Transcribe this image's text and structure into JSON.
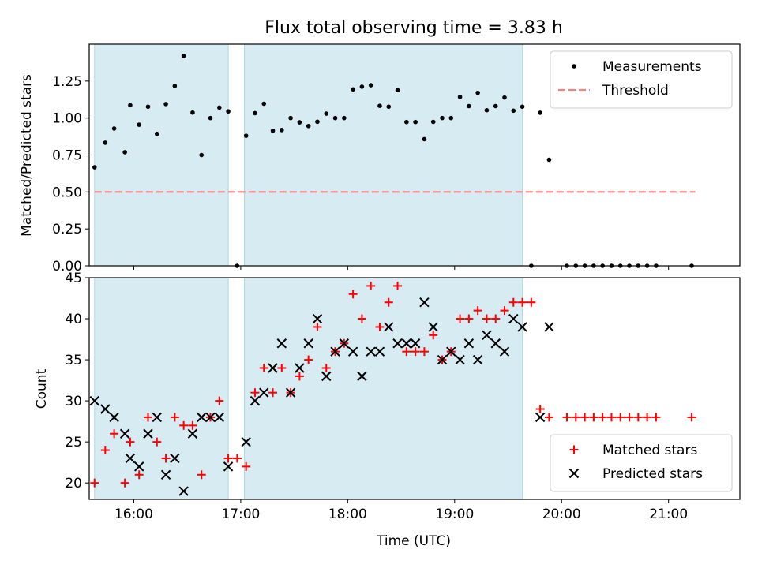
{
  "figure": {
    "title": "Flux total observing time = 3.83 h",
    "xlabel": "Time (UTC)"
  },
  "colors": {
    "band": "#add8e6",
    "measurement": "#000000",
    "threshold": "#ff7f7f",
    "matched": "#ff0000",
    "predicted": "#000000"
  },
  "chart_data": [
    {
      "type": "scatter",
      "panel": "top",
      "ylabel": "Matched/Predicted stars",
      "xlim": [
        "15:35",
        "21:40"
      ],
      "ylim": [
        0,
        1.5
      ],
      "xticks": [
        "16:00",
        "17:00",
        "18:00",
        "19:00",
        "20:00",
        "21:00"
      ],
      "yticks": [
        "0.00",
        "0.25",
        "0.50",
        "0.75",
        "1.00",
        "1.25"
      ],
      "legend": {
        "position": "top-right",
        "entries": [
          "Measurements",
          "Threshold"
        ]
      },
      "shaded_intervals": [
        [
          "15:38",
          "16:53"
        ],
        [
          "17:02",
          "19:38"
        ]
      ],
      "threshold": {
        "name": "Threshold",
        "value": 0.5,
        "x_range": [
          "15:38",
          "21:15"
        ]
      },
      "series": [
        {
          "name": "Measurements",
          "points": [
            [
              "15:38",
              0.667
            ],
            [
              "15:44",
              0.833
            ],
            [
              "15:49",
              0.929
            ],
            [
              "15:55",
              0.769
            ],
            [
              "15:58",
              1.087
            ],
            [
              "16:03",
              0.955
            ],
            [
              "16:08",
              1.077
            ],
            [
              "16:13",
              0.893
            ],
            [
              "16:18",
              1.095
            ],
            [
              "16:23",
              1.217
            ],
            [
              "16:28",
              1.421
            ],
            [
              "16:33",
              1.037
            ],
            [
              "16:38",
              0.75
            ],
            [
              "16:43",
              1.0
            ],
            [
              "16:48",
              1.071
            ],
            [
              "16:53",
              1.045
            ],
            [
              "16:58",
              0.0
            ],
            [
              "17:03",
              0.88
            ],
            [
              "17:08",
              1.033
            ],
            [
              "17:13",
              1.097
            ],
            [
              "17:18",
              0.914
            ],
            [
              "17:23",
              0.919
            ],
            [
              "17:28",
              1.0
            ],
            [
              "17:33",
              0.971
            ],
            [
              "17:38",
              0.946
            ],
            [
              "17:43",
              0.975
            ],
            [
              "17:48",
              1.03
            ],
            [
              "17:53",
              1.0
            ],
            [
              "17:58",
              1.0
            ],
            [
              "18:03",
              1.194
            ],
            [
              "18:08",
              1.212
            ],
            [
              "18:13",
              1.222
            ],
            [
              "18:18",
              1.083
            ],
            [
              "18:23",
              1.077
            ],
            [
              "18:28",
              1.189
            ],
            [
              "18:33",
              0.973
            ],
            [
              "18:38",
              0.973
            ],
            [
              "18:43",
              0.857
            ],
            [
              "18:48",
              0.974
            ],
            [
              "18:53",
              1.0
            ],
            [
              "18:58",
              1.0
            ],
            [
              "19:03",
              1.143
            ],
            [
              "19:08",
              1.081
            ],
            [
              "19:13",
              1.171
            ],
            [
              "19:18",
              1.053
            ],
            [
              "19:23",
              1.081
            ],
            [
              "19:28",
              1.139
            ],
            [
              "19:33",
              1.05
            ],
            [
              "19:38",
              1.077
            ],
            [
              "19:43",
              0.0
            ],
            [
              "19:48",
              1.036
            ],
            [
              "19:53",
              0.718
            ],
            [
              "20:03",
              0.0
            ],
            [
              "20:08",
              0.0
            ],
            [
              "20:13",
              0.0
            ],
            [
              "20:18",
              0.0
            ],
            [
              "20:23",
              0.0
            ],
            [
              "20:28",
              0.0
            ],
            [
              "20:33",
              0.0
            ],
            [
              "20:38",
              0.0
            ],
            [
              "20:43",
              0.0
            ],
            [
              "20:48",
              0.0
            ],
            [
              "20:53",
              0.0
            ],
            [
              "21:13",
              0.0
            ]
          ]
        }
      ]
    },
    {
      "type": "scatter",
      "panel": "bottom",
      "ylabel": "Count",
      "xlabel": "Time (UTC)",
      "xlim": [
        "15:35",
        "21:40"
      ],
      "ylim": [
        18,
        45
      ],
      "xticks": [
        "16:00",
        "17:00",
        "18:00",
        "19:00",
        "20:00",
        "21:00"
      ],
      "yticks": [
        "20",
        "25",
        "30",
        "35",
        "40",
        "45"
      ],
      "legend": {
        "position": "bottom-right",
        "entries": [
          "Matched stars",
          "Predicted stars"
        ]
      },
      "shaded_intervals": [
        [
          "15:38",
          "16:53"
        ],
        [
          "17:02",
          "19:38"
        ]
      ],
      "series": [
        {
          "name": "Matched stars",
          "marker": "+",
          "points": [
            [
              "15:38",
              20
            ],
            [
              "15:44",
              24
            ],
            [
              "15:49",
              26
            ],
            [
              "15:55",
              20
            ],
            [
              "15:58",
              25
            ],
            [
              "16:03",
              21
            ],
            [
              "16:08",
              28
            ],
            [
              "16:13",
              25
            ],
            [
              "16:18",
              23
            ],
            [
              "16:23",
              28
            ],
            [
              "16:28",
              27
            ],
            [
              "16:33",
              27
            ],
            [
              "16:38",
              21
            ],
            [
              "16:43",
              28
            ],
            [
              "16:48",
              30
            ],
            [
              "16:53",
              23
            ],
            [
              "16:58",
              23
            ],
            [
              "17:03",
              22
            ],
            [
              "17:08",
              31
            ],
            [
              "17:13",
              34
            ],
            [
              "17:18",
              31
            ],
            [
              "17:23",
              34
            ],
            [
              "17:28",
              31
            ],
            [
              "17:33",
              33
            ],
            [
              "17:38",
              35
            ],
            [
              "17:43",
              39
            ],
            [
              "17:48",
              34
            ],
            [
              "17:53",
              36
            ],
            [
              "17:58",
              37
            ],
            [
              "18:03",
              43
            ],
            [
              "18:08",
              40
            ],
            [
              "18:13",
              44
            ],
            [
              "18:18",
              39
            ],
            [
              "18:23",
              42
            ],
            [
              "18:28",
              44
            ],
            [
              "18:33",
              36
            ],
            [
              "18:38",
              36
            ],
            [
              "18:43",
              36
            ],
            [
              "18:48",
              38
            ],
            [
              "18:53",
              35
            ],
            [
              "18:58",
              36
            ],
            [
              "19:03",
              40
            ],
            [
              "19:08",
              40
            ],
            [
              "19:13",
              41
            ],
            [
              "19:18",
              40
            ],
            [
              "19:23",
              40
            ],
            [
              "19:28",
              41
            ],
            [
              "19:33",
              42
            ],
            [
              "19:38",
              42
            ],
            [
              "19:43",
              42
            ],
            [
              "19:48",
              29
            ],
            [
              "19:53",
              28
            ],
            [
              "20:03",
              28
            ],
            [
              "20:08",
              28
            ],
            [
              "20:13",
              28
            ],
            [
              "20:18",
              28
            ],
            [
              "20:23",
              28
            ],
            [
              "20:28",
              28
            ],
            [
              "20:33",
              28
            ],
            [
              "20:38",
              28
            ],
            [
              "20:43",
              28
            ],
            [
              "20:48",
              28
            ],
            [
              "20:53",
              28
            ],
            [
              "21:13",
              28
            ]
          ]
        },
        {
          "name": "Predicted stars",
          "marker": "x",
          "points": [
            [
              "15:38",
              30
            ],
            [
              "15:44",
              29
            ],
            [
              "15:49",
              28
            ],
            [
              "15:55",
              26
            ],
            [
              "15:58",
              23
            ],
            [
              "16:03",
              22
            ],
            [
              "16:08",
              26
            ],
            [
              "16:13",
              28
            ],
            [
              "16:18",
              21
            ],
            [
              "16:23",
              23
            ],
            [
              "16:28",
              19
            ],
            [
              "16:33",
              26
            ],
            [
              "16:38",
              28
            ],
            [
              "16:43",
              28
            ],
            [
              "16:48",
              28
            ],
            [
              "16:53",
              22
            ],
            [
              "17:03",
              25
            ],
            [
              "17:08",
              30
            ],
            [
              "17:13",
              31
            ],
            [
              "17:18",
              34
            ],
            [
              "17:23",
              37
            ],
            [
              "17:28",
              31
            ],
            [
              "17:33",
              34
            ],
            [
              "17:38",
              37
            ],
            [
              "17:43",
              40
            ],
            [
              "17:48",
              33
            ],
            [
              "17:53",
              36
            ],
            [
              "17:58",
              37
            ],
            [
              "18:03",
              36
            ],
            [
              "18:08",
              33
            ],
            [
              "18:13",
              36
            ],
            [
              "18:18",
              36
            ],
            [
              "18:23",
              39
            ],
            [
              "18:28",
              37
            ],
            [
              "18:33",
              37
            ],
            [
              "18:38",
              37
            ],
            [
              "18:43",
              42
            ],
            [
              "18:48",
              39
            ],
            [
              "18:53",
              35
            ],
            [
              "18:58",
              36
            ],
            [
              "19:03",
              35
            ],
            [
              "19:08",
              37
            ],
            [
              "19:13",
              35
            ],
            [
              "19:18",
              38
            ],
            [
              "19:23",
              37
            ],
            [
              "19:28",
              36
            ],
            [
              "19:33",
              40
            ],
            [
              "19:38",
              39
            ],
            [
              "19:48",
              28
            ],
            [
              "19:53",
              39
            ]
          ]
        }
      ]
    }
  ]
}
